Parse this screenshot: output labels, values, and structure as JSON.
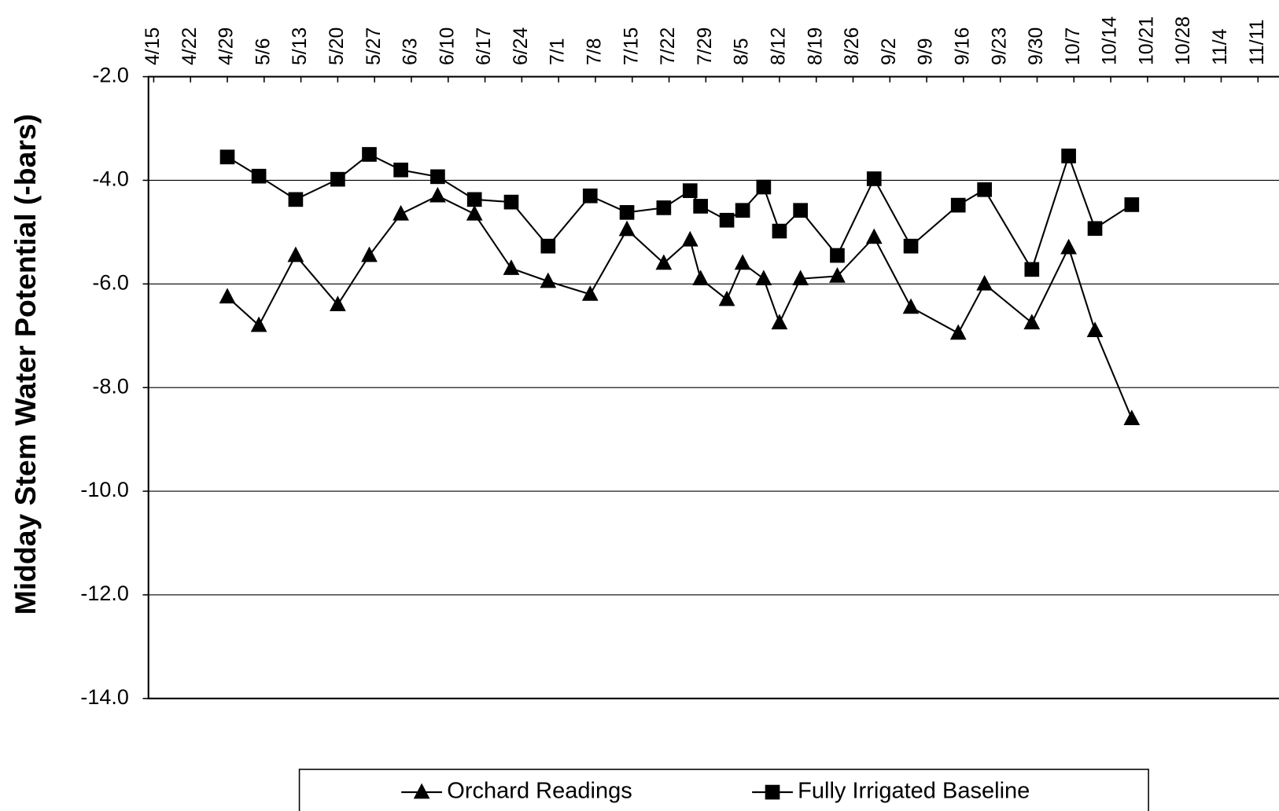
{
  "chart_data": {
    "type": "line",
    "y_label": "Midday Stem Water Potential (-bars)",
    "x": [
      "4/29",
      "5/5",
      "5/12",
      "5/20",
      "5/26",
      "6/1",
      "6/8",
      "6/15",
      "6/22",
      "6/29",
      "7/7",
      "7/14",
      "7/21",
      "7/26",
      "7/28",
      "8/2",
      "8/5",
      "8/9",
      "8/12",
      "8/16",
      "8/23",
      "8/30",
      "9/6",
      "9/15",
      "9/20",
      "9/29",
      "10/6",
      "10/11",
      "10/18"
    ],
    "series": [
      {
        "name": "Orchard Readings",
        "color": "#000000",
        "marker": "triangle",
        "values": [
          -6.25,
          -6.8,
          -5.45,
          -6.4,
          -5.45,
          -4.65,
          -4.3,
          -4.65,
          -5.7,
          -5.95,
          -6.2,
          -4.95,
          -5.6,
          -5.15,
          -5.9,
          -6.3,
          -5.6,
          -5.9,
          -6.75,
          -5.9,
          -5.85,
          -5.1,
          -6.45,
          -6.95,
          -6.0,
          -6.75,
          -5.3,
          -6.9,
          -8.6
        ]
      },
      {
        "name": "Fully Irrigated Baseline",
        "color": "#000000",
        "marker": "square",
        "values": [
          -3.55,
          -3.92,
          -4.37,
          -3.98,
          -3.5,
          -3.8,
          -3.93,
          -4.37,
          -4.42,
          -5.27,
          -4.3,
          -4.62,
          -4.53,
          -4.2,
          -4.5,
          -4.77,
          -4.58,
          -4.13,
          -4.98,
          -4.58,
          -5.45,
          -3.97,
          -5.27,
          -4.48,
          -4.18,
          -5.72,
          -3.53,
          -4.93,
          -4.47
        ]
      }
    ],
    "xlim": [
      "4/14",
      "11/15"
    ],
    "xticks": [
      "4/15",
      "4/22",
      "4/29",
      "5/6",
      "5/13",
      "5/20",
      "5/27",
      "6/3",
      "6/10",
      "6/17",
      "6/24",
      "7/1",
      "7/8",
      "7/15",
      "7/22",
      "7/29",
      "8/5",
      "8/12",
      "8/19",
      "8/26",
      "9/2",
      "9/9",
      "9/16",
      "9/23",
      "9/30",
      "10/7",
      "10/14",
      "10/21",
      "10/28",
      "11/4",
      "11/11"
    ],
    "ylim": [
      -14,
      -2
    ],
    "yticks": [
      {
        "value": -14,
        "label": "-14.0"
      },
      {
        "value": -12,
        "label": "-12.0"
      },
      {
        "value": -10,
        "label": "-10.0"
      },
      {
        "value": -8,
        "label": "-8.0"
      },
      {
        "value": -6,
        "label": "-6.0"
      },
      {
        "value": -4,
        "label": "-4.0"
      },
      {
        "value": -2,
        "label": "-2.0"
      }
    ],
    "grid": true,
    "legend": "bottom"
  }
}
